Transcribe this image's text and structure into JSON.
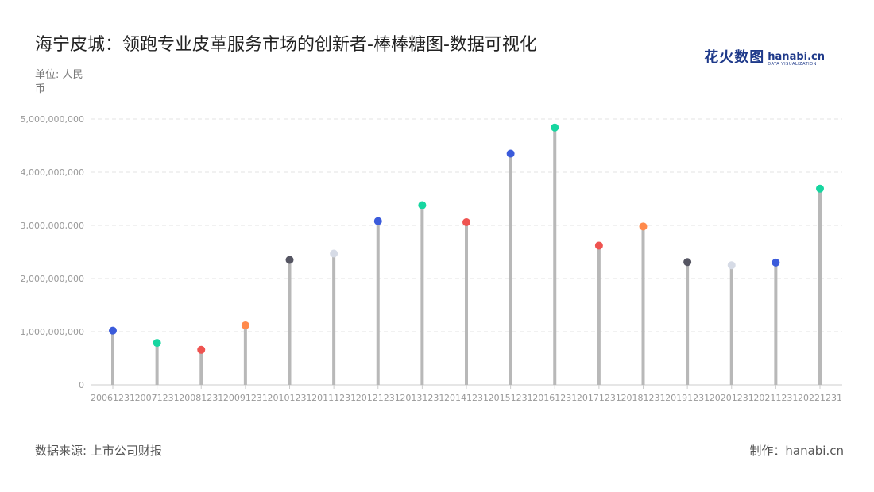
{
  "header": {
    "title": "海宁皮城：领跑专业皮革服务市场的创新者-棒棒糖图-数据可视化",
    "unit": "单位: 人民币"
  },
  "logo": {
    "cn": "花火数图",
    "en": "hanabi.cn",
    "sub": "DATA VISUALIZATION"
  },
  "footer": {
    "source": "数据来源: 上市公司财报",
    "maker": "制作：hanabi.cn"
  },
  "colors": {
    "stem": "#b8b8b8",
    "grid": "#e3e3e3",
    "tick": "#999999",
    "palette": [
      "#3b5bdb",
      "#17d6a0",
      "#ef5350",
      "#ff8a4c",
      "#555562",
      "#d6dbe6"
    ]
  },
  "chart_data": {
    "type": "lollipop",
    "title": "海宁皮城：领跑专业皮革服务市场的创新者-棒棒糖图-数据可视化",
    "ylabel": "单位: 人民币",
    "ylim": [
      0,
      5000000000
    ],
    "yticks": [
      0,
      1000000000,
      2000000000,
      3000000000,
      4000000000,
      5000000000
    ],
    "ytick_labels": [
      "0",
      "1,000,000,000",
      "2,000,000,000",
      "3,000,000,000",
      "4,000,000,000",
      "5,000,000,000"
    ],
    "grid": true,
    "categories": [
      "20061231",
      "20071231",
      "20081231",
      "20091231",
      "20101231",
      "20111231",
      "20121231",
      "20131231",
      "20141231",
      "20151231",
      "20161231",
      "20171231",
      "20181231",
      "20191231",
      "20201231",
      "20211231",
      "20221231"
    ],
    "values": [
      1020000000,
      790000000,
      660000000,
      1120000000,
      2350000000,
      2470000000,
      3080000000,
      3380000000,
      3060000000,
      4350000000,
      4840000000,
      2620000000,
      2980000000,
      2310000000,
      2250000000,
      2300000000,
      3690000000
    ],
    "colors": [
      "#3b5bdb",
      "#17d6a0",
      "#ef5350",
      "#ff8a4c",
      "#555562",
      "#d6dbe6",
      "#3b5bdb",
      "#17d6a0",
      "#ef5350",
      "#3b5bdb",
      "#17d6a0",
      "#ef5350",
      "#ff8a4c",
      "#555562",
      "#d6dbe6",
      "#3b5bdb",
      "#17d6a0"
    ]
  }
}
